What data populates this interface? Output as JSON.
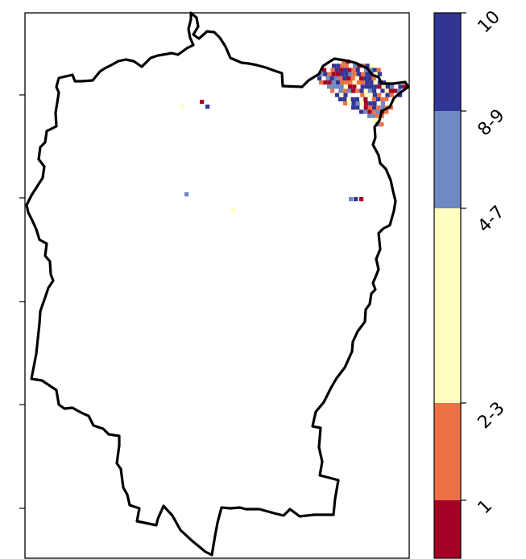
{
  "map": {
    "colors": {
      "1": "#a50026",
      "2-3": "#ee7145",
      "4-7": "#ffffbf",
      "8-9": "#6f89c3",
      "10": "#313695"
    }
  },
  "colorbar": {
    "categories": [
      {
        "label": "1",
        "color": "#a50026"
      },
      {
        "label": "2-3",
        "color": "#ee7145"
      },
      {
        "label": "4-7",
        "color": "#ffffbf"
      },
      {
        "label": "8-9",
        "color": "#6f89c3"
      },
      {
        "label": "10",
        "color": "#313695"
      }
    ]
  }
}
